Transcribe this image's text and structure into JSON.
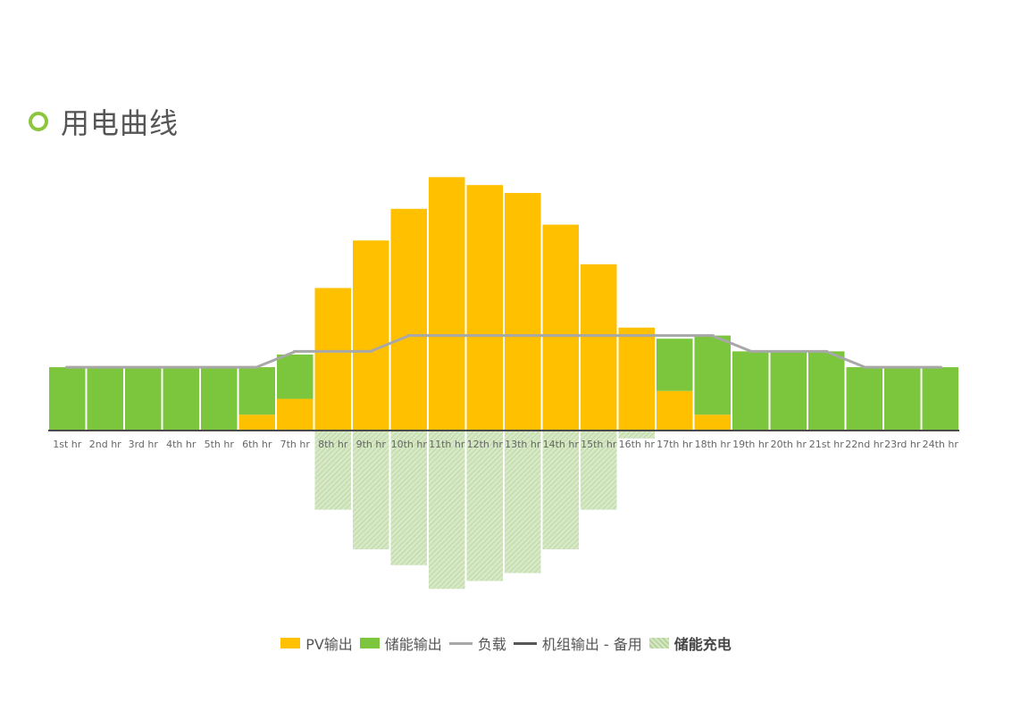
{
  "title": "用电曲线",
  "colors": {
    "pv": "#ffc000",
    "storage_out": "#7cc63d",
    "load": "#a8a8a8",
    "genset": "#555555",
    "storage_charge": "#c6deb0",
    "accent": "#8cc63f"
  },
  "legend": [
    {
      "key": "pv",
      "label": "PV输出",
      "kind": "box"
    },
    {
      "key": "storage_out",
      "label": "储能输出",
      "kind": "box"
    },
    {
      "key": "load",
      "label": "负载",
      "kind": "line"
    },
    {
      "key": "genset",
      "label": "机组输出 - 备用",
      "kind": "line"
    },
    {
      "key": "storage_charge",
      "label": "储能充电",
      "kind": "hatch"
    }
  ],
  "chart_data": {
    "type": "bar",
    "categories": [
      "1st hr",
      "2nd hr",
      "3rd hr",
      "4th hr",
      "5th hr",
      "6th hr",
      "7th hr",
      "8th hr",
      "9th hr",
      "10th hr",
      "11th hr",
      "12th hr",
      "13th hr",
      "14th hr",
      "15th hr",
      "16th hr",
      "17th hr",
      "18th hr",
      "19th hr",
      "20th hr",
      "21st hr",
      "22nd hr",
      "23rd hr",
      "24th hr"
    ],
    "series": [
      {
        "name": "PV输出",
        "key": "pv",
        "stack": "top",
        "values": [
          0,
          0,
          0,
          0,
          0,
          1,
          2,
          9,
          12,
          14,
          16,
          15.5,
          15,
          13,
          10.5,
          6.5,
          2.5,
          1,
          0,
          0,
          0,
          0,
          0,
          0
        ]
      },
      {
        "name": "储能输出",
        "key": "storage_out",
        "stack": "top",
        "values": [
          4,
          4,
          4,
          4,
          4,
          3,
          2.8,
          0,
          0,
          0,
          0,
          0,
          0,
          0,
          0,
          0,
          3.3,
          5,
          5,
          5,
          5,
          4,
          4,
          4
        ]
      },
      {
        "name": "负载",
        "key": "load",
        "kind": "line",
        "values": [
          4,
          4,
          4,
          4,
          4,
          4,
          5,
          5,
          5,
          6,
          6,
          6,
          6,
          6,
          6,
          6,
          6,
          6,
          5,
          5,
          5,
          4,
          4,
          4
        ]
      },
      {
        "name": "储能充电",
        "key": "storage_charge",
        "stack": "bottom",
        "values": [
          0,
          0,
          0,
          0,
          0,
          0,
          0,
          -5,
          -7.5,
          -8.5,
          -10,
          -9.5,
          -9,
          -7.5,
          -5,
          -0.5,
          0,
          0,
          0,
          0,
          0,
          0,
          0,
          0
        ]
      }
    ],
    "ylim": [
      -10.5,
      18.5
    ],
    "grid": false,
    "legend_position": "bottom"
  }
}
